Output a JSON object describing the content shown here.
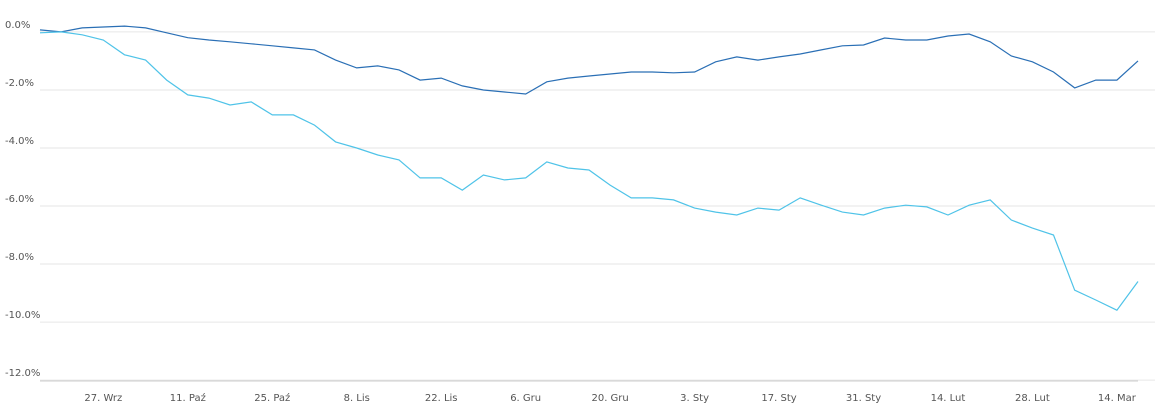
{
  "chart_data": {
    "type": "line",
    "categories": [
      null,
      null,
      null,
      "27. Wrz",
      null,
      null,
      null,
      "11. Paź",
      null,
      null,
      null,
      "25. Paź",
      null,
      null,
      null,
      "8. Lis",
      null,
      null,
      null,
      "22. Lis",
      null,
      null,
      null,
      "6. Gru",
      null,
      null,
      null,
      "20. Gru",
      null,
      null,
      null,
      "3. Sty",
      null,
      null,
      null,
      "17. Sty",
      null,
      null,
      null,
      "31. Sty",
      null,
      null,
      null,
      "14. Lut",
      null,
      null,
      null,
      "28. Lut",
      null,
      null,
      null,
      "14. Mar",
      null
    ],
    "series": [
      {
        "color": "#2a6fb5",
        "values": [
          0.07,
          0,
          0.14,
          0.17,
          0.2,
          0.14,
          -0.03,
          -0.2,
          -0.28,
          -0.34,
          -0.41,
          -0.48,
          -0.55,
          -0.62,
          -0.97,
          -1.24,
          -1.17,
          -1.31,
          -1.66,
          -1.59,
          -1.86,
          -2.0,
          -2.07,
          -2.14,
          -1.72,
          -1.59,
          -1.52,
          -1.45,
          -1.38,
          -1.38,
          -1.41,
          -1.38,
          -1.03,
          -0.86,
          -0.97,
          -0.86,
          -0.76,
          -0.62,
          -0.48,
          -0.45,
          -0.21,
          -0.28,
          -0.28,
          -0.14,
          -0.07,
          -0.34,
          -0.83,
          -1.03,
          -1.38,
          -1.93,
          -1.66,
          -1.66,
          -1.0
        ]
      },
      {
        "color": "#4fc3e8",
        "values": [
          -0.03,
          0,
          -0.1,
          -0.28,
          -0.79,
          -0.97,
          -1.66,
          -2.17,
          -2.28,
          -2.52,
          -2.41,
          -2.86,
          -2.86,
          -3.21,
          -3.79,
          -4.0,
          -4.24,
          -4.41,
          -5.03,
          -5.03,
          -5.45,
          -4.93,
          -5.1,
          -5.03,
          -4.48,
          -4.69,
          -4.76,
          -5.28,
          -5.72,
          -5.72,
          -5.79,
          -6.07,
          -6.21,
          -6.31,
          -6.07,
          -6.14,
          -5.72,
          -5.97,
          -6.21,
          -6.31,
          -6.07,
          -5.97,
          -6.03,
          -6.31,
          -5.97,
          -5.79,
          -6.48,
          -6.76,
          -7.0,
          -8.9,
          -9.24,
          -9.59,
          -8.6
        ]
      }
    ],
    "ylim": [
      -12.03,
      1.1
    ],
    "yticks": [
      {
        "value": 0,
        "label": "0.0%"
      },
      {
        "value": -2,
        "label": "-2.0%"
      },
      {
        "value": -4,
        "label": "-4.0%"
      },
      {
        "value": -6,
        "label": "-6.0%"
      },
      {
        "value": -8,
        "label": "-8.0%"
      },
      {
        "value": -10,
        "label": "-10.0%"
      },
      {
        "value": -12,
        "label": "-12.0%"
      }
    ],
    "grid": true
  }
}
